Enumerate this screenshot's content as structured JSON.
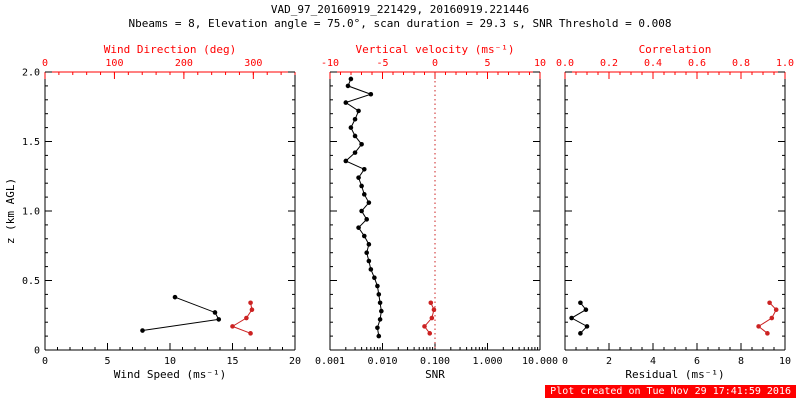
{
  "header": {
    "title": "VAD_97_20160919_221429, 20160919.221446",
    "subtitle": "Nbeams = 8, Elevation angle = 75.0°, scan duration = 29.3 s, SNR Threshold = 0.008"
  },
  "footer": {
    "created": "Plot created on Tue Nov 29 17:41:59 2016"
  },
  "chart_data": {
    "type": "scatter",
    "title": "VAD_97_20160919_221429, 20160919.221446",
    "subtitle": "Nbeams = 8, Elevation angle = 75.0°, scan duration = 29.3 s, SNR Threshold = 0.008",
    "colors": {
      "axis": "#000000",
      "axis_alt": "#ff0000",
      "series_black": "#000000",
      "series_red": "#cc2222",
      "footer_bg": "#ff0000"
    },
    "y_axis": {
      "label": "z (km AGL)",
      "min": 0,
      "max": 2,
      "ticks": [
        0,
        0.5,
        1,
        1.5,
        2
      ],
      "tick_labels": [
        "0",
        "0.5",
        "1.0",
        "1.5",
        "2.0"
      ],
      "minor_step": 0.1
    },
    "panels": [
      {
        "id": "wind",
        "show_y_labels": true,
        "bottom_axis": {
          "label": "Wind Speed (ms⁻¹)",
          "min": 0,
          "max": 20,
          "scale": "linear",
          "ticks": [
            0,
            5,
            10,
            15,
            20
          ],
          "tick_labels": [
            "0",
            "5",
            "10",
            "15",
            "20"
          ],
          "minor_step": 1
        },
        "top_axis": {
          "label": "Wind Direction (deg)",
          "min": 0,
          "max": 360,
          "scale": "linear",
          "ticks": [
            0,
            100,
            200,
            300
          ],
          "tick_labels": [
            "0",
            "100",
            "200",
            "300"
          ],
          "minor_step": 20
        },
        "series": [
          {
            "name": "wind-speed",
            "axis": "bottom",
            "color": "#000000",
            "z": [
              0.14,
              0.22,
              0.27,
              0.38
            ],
            "v": [
              7.8,
              13.9,
              13.6,
              10.4
            ]
          },
          {
            "name": "wind-direction",
            "axis": "top",
            "color": "#cc2222",
            "z": [
              0.12,
              0.17,
              0.23,
              0.29,
              0.34
            ],
            "v": [
              296,
              270,
              290,
              298,
              296
            ]
          }
        ]
      },
      {
        "id": "snr",
        "show_y_labels": false,
        "bottom_axis": {
          "label": "SNR",
          "min": 0.001,
          "max": 10,
          "scale": "log",
          "ticks": [
            0.001,
            0.01,
            0.1,
            1,
            10
          ],
          "tick_labels": [
            "0.001",
            "0.010",
            "0.100",
            "1.000",
            "10.000"
          ]
        },
        "top_axis": {
          "label": "Vertical velocity (ms⁻¹)",
          "min": -10,
          "max": 10,
          "scale": "linear",
          "ticks": [
            -10,
            -5,
            0,
            5,
            10
          ],
          "tick_labels": [
            "-10",
            "-5",
            "0",
            "5",
            "10"
          ],
          "minor_step": 1
        },
        "ref_line": {
          "axis": "top",
          "value": 0,
          "color": "#cc2222",
          "style": "dotted"
        },
        "series": [
          {
            "name": "snr-profile",
            "axis": "bottom",
            "color": "#000000",
            "z": [
              0.1,
              0.16,
              0.22,
              0.28,
              0.34,
              0.4,
              0.46,
              0.52,
              0.58,
              0.64,
              0.7,
              0.76,
              0.82,
              0.88,
              0.94,
              1.0,
              1.06,
              1.12,
              1.18,
              1.24,
              1.3,
              1.36,
              1.42,
              1.48,
              1.54,
              1.6,
              1.66,
              1.72,
              1.78,
              1.84,
              1.9,
              1.95
            ],
            "v": [
              0.0085,
              0.008,
              0.009,
              0.0095,
              0.009,
              0.0085,
              0.008,
              0.007,
              0.006,
              0.0055,
              0.005,
              0.0055,
              0.0045,
              0.0035,
              0.005,
              0.004,
              0.0055,
              0.0045,
              0.004,
              0.0035,
              0.0045,
              0.002,
              0.003,
              0.004,
              0.003,
              0.0025,
              0.003,
              0.0035,
              0.002,
              0.006,
              0.0022,
              0.0025
            ]
          },
          {
            "name": "vertical-velocity",
            "axis": "top",
            "color": "#cc2222",
            "z": [
              0.12,
              0.17,
              0.23,
              0.29,
              0.34
            ],
            "v": [
              -0.5,
              -1.0,
              -0.3,
              -0.1,
              -0.4
            ]
          }
        ]
      },
      {
        "id": "residual",
        "show_y_labels": false,
        "bottom_axis": {
          "label": "Residual (ms⁻¹)",
          "min": 0,
          "max": 10,
          "scale": "linear",
          "ticks": [
            0,
            2,
            4,
            6,
            8,
            10
          ],
          "tick_labels": [
            "0",
            "2",
            "4",
            "6",
            "8",
            "10"
          ],
          "minor_step": 0.5
        },
        "top_axis": {
          "label": "Correlation",
          "min": 0,
          "max": 1,
          "scale": "linear",
          "ticks": [
            0,
            0.2,
            0.4,
            0.6,
            0.8,
            1
          ],
          "tick_labels": [
            "0.0",
            "0.2",
            "0.4",
            "0.6",
            "0.8",
            "1.0"
          ],
          "minor_step": 0.05
        },
        "series": [
          {
            "name": "residual",
            "axis": "bottom",
            "color": "#000000",
            "z": [
              0.12,
              0.17,
              0.23,
              0.29,
              0.34
            ],
            "v": [
              0.7,
              1.0,
              0.3,
              0.95,
              0.7
            ]
          },
          {
            "name": "correlation",
            "axis": "top",
            "color": "#cc2222",
            "z": [
              0.12,
              0.17,
              0.23,
              0.29,
              0.34
            ],
            "v": [
              0.92,
              0.88,
              0.94,
              0.96,
              0.93
            ]
          }
        ]
      }
    ]
  }
}
